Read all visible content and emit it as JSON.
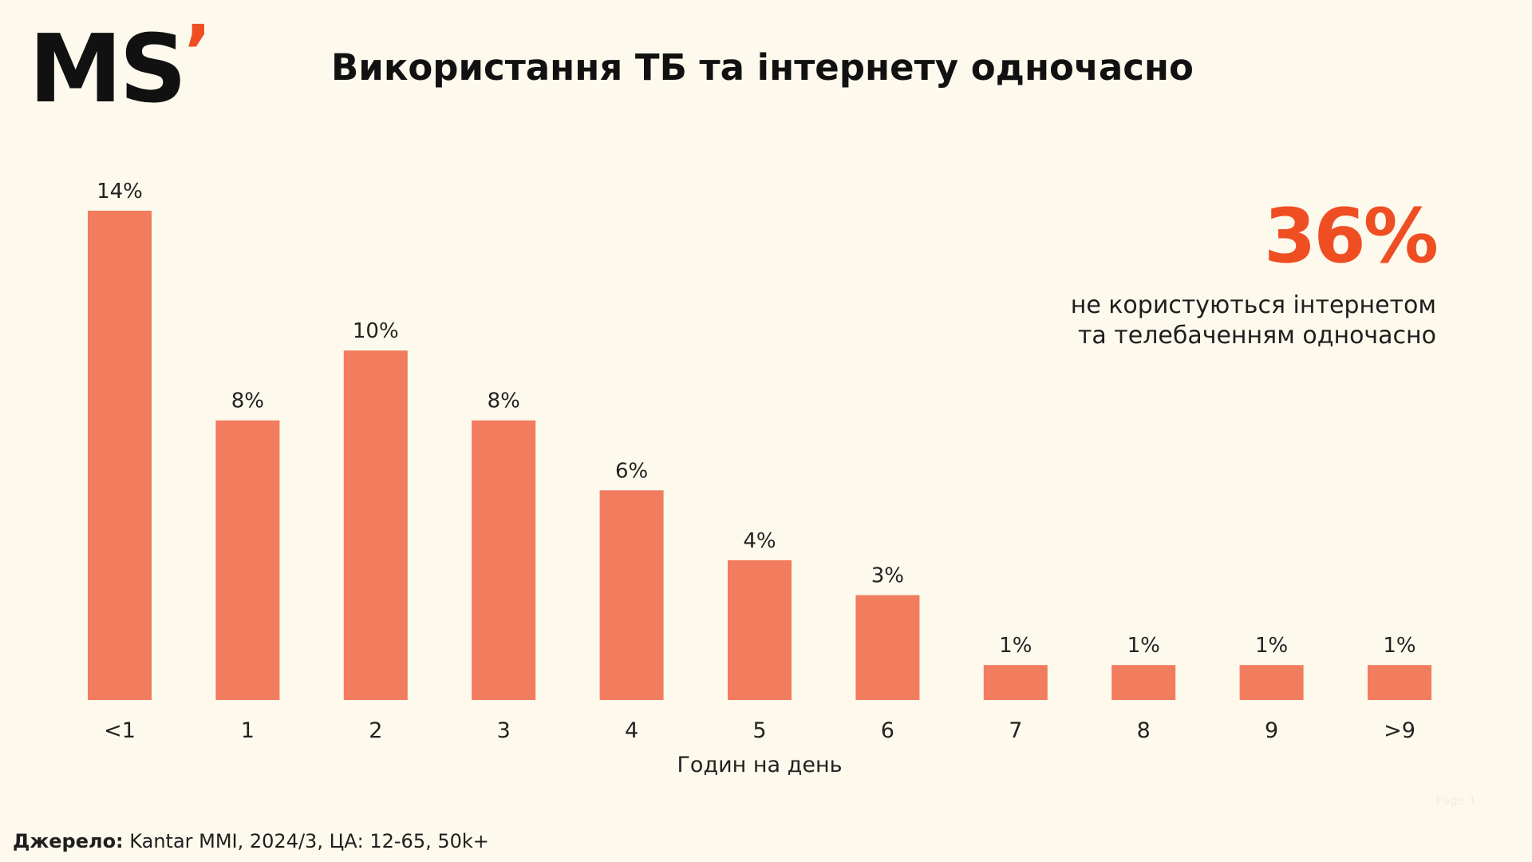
{
  "logo": {
    "text": "MS",
    "accent": "’"
  },
  "title": "Використання ТБ та інтернету одночасно",
  "highlight": {
    "value": "36%",
    "caption": "не користуються інтернетом\nта телебаченням одночасно"
  },
  "source": {
    "label": "Джерело:",
    "text": "Kantar MMI, 2024/3, ЦА: 12-65, 50k+"
  },
  "page_mark": "Page 1",
  "colors": {
    "bar": "#f27c5e",
    "accent": "#ef4e23",
    "background": "#fdf9ed"
  },
  "chart_data": {
    "type": "bar",
    "categories": [
      "<1",
      "1",
      "2",
      "3",
      "4",
      "5",
      "6",
      "7",
      "8",
      "9",
      ">9"
    ],
    "values": [
      14,
      8,
      10,
      8,
      6,
      4,
      3,
      1,
      1,
      1,
      1
    ],
    "data_labels": [
      "14%",
      "8%",
      "10%",
      "8%",
      "6%",
      "4%",
      "3%",
      "1%",
      "1%",
      "1%",
      "1%"
    ],
    "xlabel": "Годин на день",
    "ylabel": "",
    "ylim": [
      0,
      14
    ],
    "grid": false,
    "legend": "none"
  }
}
